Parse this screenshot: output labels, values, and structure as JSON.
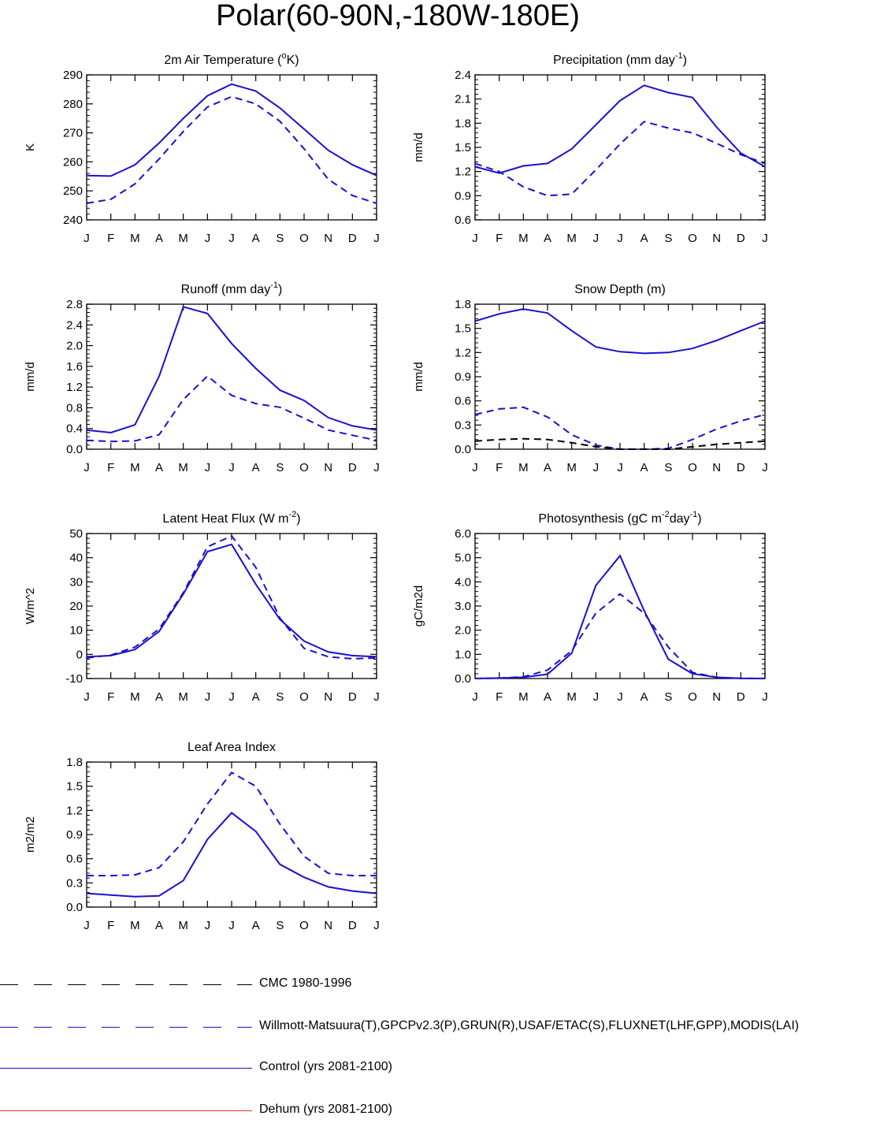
{
  "page": {
    "title": "Polar(60-90N,-180W-180E)"
  },
  "colors": {
    "control": "#1a10d0",
    "obs": "#1a10d0",
    "cmc": "#000000",
    "dehum": "#e8302a"
  },
  "months": [
    "J",
    "F",
    "M",
    "A",
    "M",
    "J",
    "J",
    "A",
    "S",
    "O",
    "N",
    "D",
    "J"
  ],
  "chart_data": [
    {
      "id": "temp",
      "type": "line",
      "title": "2m Air Temperature (",
      "title_sup": "o",
      "title_post": "K)",
      "ylabel": "K",
      "ylim": [
        240,
        290
      ],
      "yticks": [
        240,
        250,
        260,
        270,
        280,
        290
      ],
      "yticklabels": [
        "240",
        "250",
        "260",
        "270",
        "280",
        "290"
      ],
      "series": [
        {
          "name": "Control (yrs 2081-2100)",
          "style": "solid",
          "color": "control",
          "values": [
            255.3,
            255.1,
            259.0,
            266.5,
            275.0,
            282.8,
            286.8,
            284.4,
            278.6,
            271.3,
            264.0,
            259.0,
            255.3
          ]
        },
        {
          "name": "Willmott-Matsuura(T)",
          "style": "dashed",
          "color": "obs",
          "values": [
            245.7,
            247.1,
            252.4,
            261.0,
            270.5,
            278.9,
            282.5,
            280.0,
            274.0,
            264.5,
            254.0,
            248.4,
            245.7
          ]
        }
      ]
    },
    {
      "id": "precip",
      "type": "line",
      "title": "Precipitation (mm day",
      "title_sup": "-1",
      "title_post": ")",
      "ylabel": "mm/d",
      "ylim": [
        0.6,
        2.4
      ],
      "yticks": [
        0.6,
        0.9,
        1.2,
        1.5,
        1.8,
        2.1,
        2.4
      ],
      "yticklabels": [
        "0.6",
        "0.9",
        "1.2",
        "1.5",
        "1.8",
        "2.1",
        "2.4"
      ],
      "series": [
        {
          "name": "Control (yrs 2081-2100)",
          "style": "solid",
          "color": "control",
          "values": [
            1.26,
            1.18,
            1.27,
            1.3,
            1.48,
            1.78,
            2.08,
            2.27,
            2.18,
            2.12,
            1.75,
            1.43,
            1.26
          ]
        },
        {
          "name": "GPCPv2.3(P)",
          "style": "dashed",
          "color": "obs",
          "values": [
            1.3,
            1.2,
            1.01,
            0.9,
            0.92,
            1.22,
            1.54,
            1.82,
            1.74,
            1.68,
            1.55,
            1.41,
            1.3
          ]
        }
      ]
    },
    {
      "id": "runoff",
      "type": "line",
      "title": "Runoff (mm day",
      "title_sup": "-1",
      "title_post": ")",
      "ylabel": "mm/d",
      "ylim": [
        0.0,
        2.8
      ],
      "yticks": [
        0.0,
        0.4,
        0.8,
        1.2,
        1.6,
        2.0,
        2.4,
        2.8
      ],
      "yticklabels": [
        "0.0",
        "0.4",
        "0.8",
        "1.2",
        "1.6",
        "2.0",
        "2.4",
        "2.8"
      ],
      "series": [
        {
          "name": "Control (yrs 2081-2100)",
          "style": "solid",
          "color": "control",
          "values": [
            0.37,
            0.32,
            0.47,
            1.41,
            2.75,
            2.62,
            2.04,
            1.56,
            1.14,
            0.94,
            0.61,
            0.45,
            0.37
          ]
        },
        {
          "name": "GRUN(R)",
          "style": "dashed",
          "color": "obs",
          "values": [
            0.17,
            0.15,
            0.16,
            0.28,
            0.96,
            1.41,
            1.04,
            0.88,
            0.81,
            0.6,
            0.37,
            0.27,
            0.17
          ]
        }
      ]
    },
    {
      "id": "snow",
      "type": "line",
      "title": "Snow Depth (m)",
      "title_sup": "",
      "title_post": "",
      "ylabel": "mm/d",
      "ylim": [
        0.0,
        1.8
      ],
      "yticks": [
        0.0,
        0.3,
        0.6,
        0.9,
        1.2,
        1.5,
        1.8
      ],
      "yticklabels": [
        "0.0",
        "0.3",
        "0.6",
        "0.9",
        "1.2",
        "1.5",
        "1.8"
      ],
      "series": [
        {
          "name": "Control (yrs 2081-2100)",
          "style": "solid",
          "color": "control",
          "values": [
            1.59,
            1.68,
            1.74,
            1.69,
            1.47,
            1.27,
            1.21,
            1.19,
            1.2,
            1.25,
            1.35,
            1.47,
            1.59
          ]
        },
        {
          "name": "USAF/ETAC(S)",
          "style": "dashed",
          "color": "obs",
          "values": [
            0.43,
            0.5,
            0.52,
            0.4,
            0.18,
            0.05,
            0.0,
            0.0,
            0.01,
            0.12,
            0.25,
            0.35,
            0.43
          ]
        },
        {
          "name": "CMC 1980-1996",
          "style": "dashed",
          "color": "cmc",
          "values": [
            0.1,
            0.12,
            0.13,
            0.12,
            0.08,
            0.03,
            0.0,
            0.0,
            0.0,
            0.03,
            0.06,
            0.08,
            0.1
          ]
        }
      ]
    },
    {
      "id": "lhf",
      "type": "line",
      "title": "Latent Heat Flux (W m",
      "title_sup": "-2",
      "title_post": ")",
      "ylabel": "W/m^2",
      "ylim": [
        -10,
        50
      ],
      "yticks": [
        -10,
        0,
        10,
        20,
        30,
        40,
        50
      ],
      "yticklabels": [
        "-10",
        "0",
        "10",
        "20",
        "30",
        "40",
        "50"
      ],
      "series": [
        {
          "name": "Control (yrs 2081-2100)",
          "style": "solid",
          "color": "control",
          "values": [
            -1.0,
            -0.5,
            2.0,
            9.5,
            25.0,
            42.5,
            45.5,
            29.0,
            14.5,
            5.5,
            1.0,
            -0.5,
            -1.0
          ]
        },
        {
          "name": "FLUXNET(LHF)",
          "style": "dashed",
          "color": "obs",
          "values": [
            -1.5,
            -0.3,
            3.0,
            10.5,
            25.5,
            44.5,
            49.0,
            36.0,
            15.0,
            2.5,
            -1.0,
            -1.8,
            -1.5
          ]
        }
      ]
    },
    {
      "id": "gpp",
      "type": "line",
      "title": "Photosynthesis (gC m",
      "title_sup": "-2",
      "title_post": "day",
      "title_sup2": "-1",
      "title_post2": ")",
      "ylabel": "gC/m2d",
      "ylim": [
        0.0,
        6.0
      ],
      "yticks": [
        0.0,
        1.0,
        2.0,
        3.0,
        4.0,
        5.0,
        6.0
      ],
      "yticklabels": [
        "0.0",
        "1.0",
        "2.0",
        "3.0",
        "4.0",
        "5.0",
        "6.0"
      ],
      "series": [
        {
          "name": "Control (yrs 2081-2100)",
          "style": "solid",
          "color": "control",
          "values": [
            0.0,
            0.02,
            0.05,
            0.18,
            1.05,
            3.85,
            5.08,
            2.8,
            0.8,
            0.2,
            0.05,
            0.01,
            0.0
          ]
        },
        {
          "name": "FLUXNET(GPP)",
          "style": "dashed",
          "color": "obs",
          "values": [
            0.0,
            0.02,
            0.07,
            0.35,
            1.15,
            2.7,
            3.5,
            2.7,
            1.3,
            0.25,
            0.05,
            0.01,
            0.0
          ]
        }
      ]
    },
    {
      "id": "lai",
      "type": "line",
      "title": "Leaf Area Index",
      "title_sup": "",
      "title_post": "",
      "ylabel": "m2/m2",
      "ylim": [
        0.0,
        1.8
      ],
      "yticks": [
        0.0,
        0.3,
        0.6,
        0.9,
        1.2,
        1.5,
        1.8
      ],
      "yticklabels": [
        "0.0",
        "0.3",
        "0.6",
        "0.9",
        "1.2",
        "1.5",
        "1.8"
      ],
      "series": [
        {
          "name": "Control (yrs 2081-2100)",
          "style": "solid",
          "color": "control",
          "values": [
            0.17,
            0.15,
            0.13,
            0.14,
            0.33,
            0.84,
            1.17,
            0.94,
            0.53,
            0.37,
            0.25,
            0.2,
            0.17
          ]
        },
        {
          "name": "MODIS(LAI)",
          "style": "dashed",
          "color": "obs",
          "values": [
            0.39,
            0.39,
            0.4,
            0.49,
            0.81,
            1.28,
            1.67,
            1.5,
            1.03,
            0.63,
            0.42,
            0.39,
            0.39
          ]
        }
      ]
    }
  ],
  "legend": [
    {
      "label": "CMC 1980-1996",
      "style": "dashed",
      "color": "cmc"
    },
    {
      "label": "Willmott-Matsuura(T),GPCPv2.3(P),GRUN(R),USAF/ETAC(S),FLUXNET(LHF,GPP),MODIS(LAI)",
      "style": "dashed",
      "color": "obs"
    },
    {
      "label": "Control (yrs 2081-2100)",
      "style": "solid",
      "color": "control"
    },
    {
      "label": "Dehum (yrs 2081-2100)",
      "style": "solid",
      "color": "dehum"
    }
  ]
}
